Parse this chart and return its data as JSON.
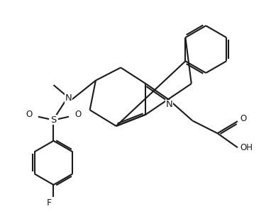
{
  "background_color": "#ffffff",
  "bond_color": "#1a1a1a",
  "label_color": "#8B6914",
  "line_width": 1.5,
  "figsize": [
    3.82,
    3.12
  ],
  "dpi": 100,
  "xlim": [
    0,
    10
  ],
  "ylim": [
    0,
    8.2
  ]
}
